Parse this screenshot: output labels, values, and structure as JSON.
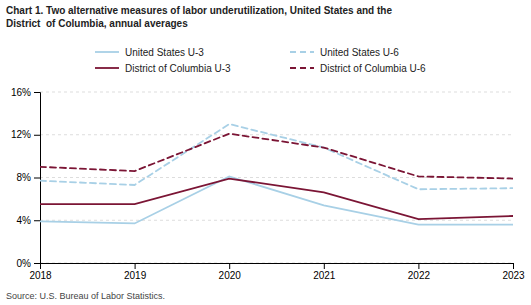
{
  "chart_data": {
    "type": "line",
    "title": "Chart 1. Two alternative measures of labor underutilization, United States and the\nDistrict  of Columbia, annual averages",
    "annotations": [
      "Source: U.S. Bureau of Labor Statistics."
    ],
    "x": [
      2018,
      2019,
      2020,
      2021,
      2022,
      2023
    ],
    "series": [
      {
        "name": "United States U-3",
        "color": "#a8d0e6",
        "line_style": "solid",
        "values": [
          3.9,
          3.7,
          8.1,
          5.4,
          3.6,
          3.6
        ]
      },
      {
        "name": "United States U-6",
        "color": "#a8d0e6",
        "line_style": "dashed",
        "values": [
          7.7,
          7.3,
          13.0,
          10.8,
          6.9,
          7.0
        ]
      },
      {
        "name": "District of Columbia U-3",
        "color": "#7b1535",
        "line_style": "solid",
        "values": [
          5.5,
          5.5,
          7.9,
          6.6,
          4.1,
          4.4
        ]
      },
      {
        "name": "District of Columbia U-6",
        "color": "#7b1535",
        "line_style": "dashed",
        "values": [
          9.0,
          8.6,
          12.1,
          10.8,
          8.1,
          7.9
        ]
      }
    ],
    "xlim": [
      2018,
      2023
    ],
    "xticks": [
      2018,
      2019,
      2020,
      2021,
      2022,
      2023
    ],
    "ylim": [
      0,
      16
    ],
    "yticks": [
      {
        "value": 0,
        "label": "0%"
      },
      {
        "value": 4,
        "label": "4%"
      },
      {
        "value": 8,
        "label": "8%"
      },
      {
        "value": 12,
        "label": "12%"
      },
      {
        "value": 16,
        "label": "16%"
      }
    ],
    "grid": "y",
    "legend": "top"
  }
}
